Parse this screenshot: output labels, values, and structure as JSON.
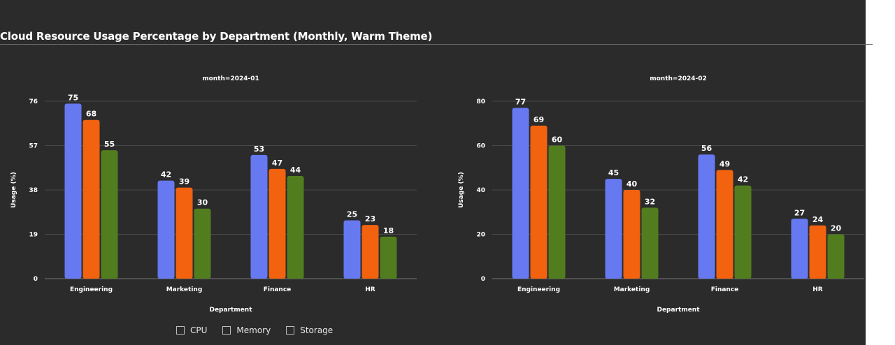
{
  "title": "Cloud Resource Usage Percentage by Department (Monthly, Warm Theme)",
  "colors": {
    "CPU": "#6679f0",
    "Memory": "#f2620f",
    "Storage": "#527d1e",
    "background": "#2b2b2b",
    "text": "#ffffff",
    "grid": "#4a4a4a"
  },
  "legend": {
    "position": "bottom-center",
    "items": [
      {
        "label": "CPU"
      },
      {
        "label": "Memory"
      },
      {
        "label": "Storage"
      }
    ]
  },
  "chart_data": [
    {
      "type": "bar",
      "title": "month=2024-01",
      "xlabel": "Department",
      "ylabel": "Usage (%)",
      "categories": [
        "Engineering",
        "Marketing",
        "Finance",
        "HR"
      ],
      "yticks": [
        0,
        19,
        38,
        57,
        76
      ],
      "ylim": [
        0,
        76
      ],
      "grid": true,
      "series": [
        {
          "name": "CPU",
          "values": [
            75,
            42,
            53,
            25
          ]
        },
        {
          "name": "Memory",
          "values": [
            68,
            39,
            47,
            23
          ]
        },
        {
          "name": "Storage",
          "values": [
            55,
            30,
            44,
            18
          ]
        }
      ]
    },
    {
      "type": "bar",
      "title": "month=2024-02",
      "xlabel": "Department",
      "ylabel": "Usage (%)",
      "categories": [
        "Engineering",
        "Marketing",
        "Finance",
        "HR"
      ],
      "yticks": [
        0,
        20,
        40,
        60,
        80
      ],
      "ylim": [
        0,
        80
      ],
      "grid": true,
      "series": [
        {
          "name": "CPU",
          "values": [
            77,
            45,
            56,
            27
          ]
        },
        {
          "name": "Memory",
          "values": [
            69,
            40,
            49,
            24
          ]
        },
        {
          "name": "Storage",
          "values": [
            60,
            32,
            42,
            20
          ]
        }
      ]
    }
  ]
}
